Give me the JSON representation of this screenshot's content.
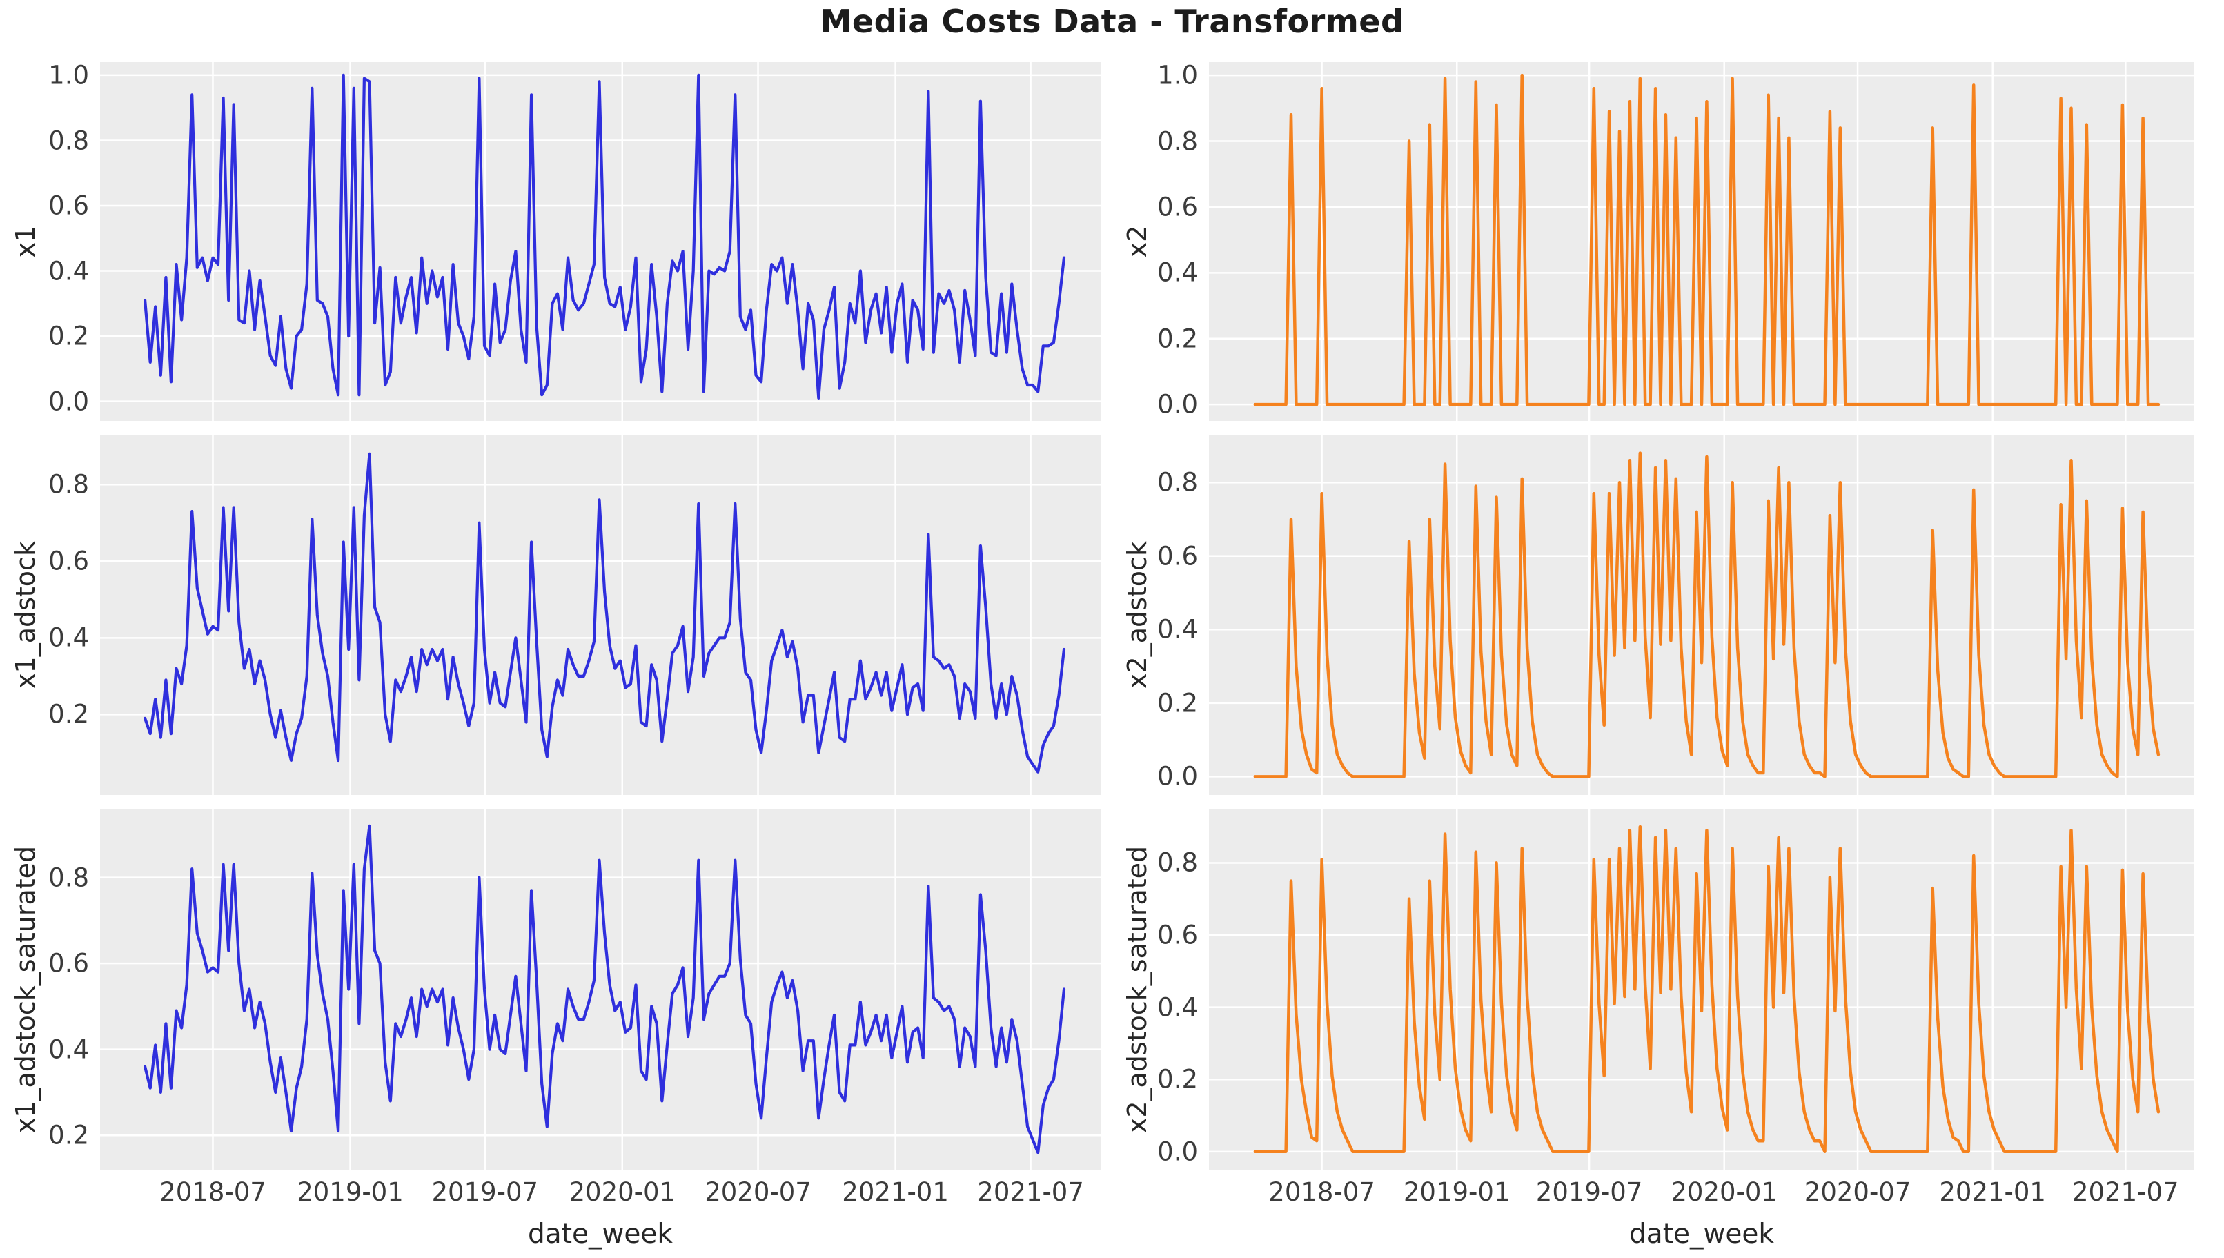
{
  "title": "Media Costs Data - Transformed",
  "colors": {
    "blue": "#2f2fdd",
    "orange": "#f5821e",
    "axes_bg": "#ececec",
    "grid": "#ffffff",
    "tick_text": "#3b3b3b",
    "label_text": "#262626",
    "title_text": "#1c1c1c",
    "figure_bg": "#ffffff"
  },
  "chart_data": {
    "type": "line",
    "title": "Media Costs Data - Transformed",
    "xlabel": "date_week",
    "grid": true,
    "legend": "none",
    "x_start_date": "2018-04-01",
    "x_step_days": 7,
    "n_points": 177,
    "x_tick_labels": [
      "2018-07",
      "2019-01",
      "2019-07",
      "2020-01",
      "2020-07",
      "2021-01",
      "2021-07"
    ],
    "x_tick_weeks": [
      13,
      39.3,
      65.1,
      91.4,
      117.4,
      143.7,
      169.6
    ],
    "subplots": [
      {
        "row": 0,
        "col": 0,
        "ylabel": "x1",
        "color": "blue",
        "yticks": [
          0.0,
          0.2,
          0.4,
          0.6,
          0.8,
          1.0
        ],
        "ylim": [
          -0.06,
          1.04
        ],
        "xlim": [
          -8.6,
          183
        ],
        "values": [
          0.31,
          0.12,
          0.29,
          0.08,
          0.38,
          0.06,
          0.42,
          0.25,
          0.44,
          0.94,
          0.41,
          0.44,
          0.37,
          0.44,
          0.42,
          0.93,
          0.31,
          0.91,
          0.25,
          0.24,
          0.4,
          0.22,
          0.37,
          0.26,
          0.14,
          0.11,
          0.26,
          0.1,
          0.04,
          0.2,
          0.22,
          0.36,
          0.96,
          0.31,
          0.3,
          0.26,
          0.1,
          0.02,
          1.0,
          0.2,
          0.96,
          0.02,
          0.99,
          0.98,
          0.24,
          0.41,
          0.05,
          0.09,
          0.38,
          0.24,
          0.32,
          0.38,
          0.21,
          0.44,
          0.3,
          0.4,
          0.32,
          0.38,
          0.16,
          0.42,
          0.24,
          0.2,
          0.13,
          0.26,
          0.99,
          0.17,
          0.14,
          0.36,
          0.18,
          0.22,
          0.37,
          0.46,
          0.22,
          0.12,
          0.94,
          0.23,
          0.02,
          0.05,
          0.3,
          0.33,
          0.22,
          0.44,
          0.31,
          0.28,
          0.3,
          0.36,
          0.42,
          0.98,
          0.38,
          0.3,
          0.29,
          0.35,
          0.22,
          0.29,
          0.44,
          0.06,
          0.16,
          0.42,
          0.26,
          0.03,
          0.3,
          0.43,
          0.4,
          0.46,
          0.16,
          0.4,
          1.0,
          0.03,
          0.4,
          0.39,
          0.41,
          0.4,
          0.46,
          0.94,
          0.26,
          0.22,
          0.28,
          0.08,
          0.06,
          0.28,
          0.42,
          0.4,
          0.44,
          0.3,
          0.42,
          0.28,
          0.1,
          0.3,
          0.25,
          0.01,
          0.22,
          0.28,
          0.35,
          0.04,
          0.12,
          0.3,
          0.24,
          0.4,
          0.18,
          0.28,
          0.33,
          0.21,
          0.35,
          0.15,
          0.3,
          0.36,
          0.12,
          0.31,
          0.28,
          0.16,
          0.95,
          0.15,
          0.33,
          0.3,
          0.34,
          0.28,
          0.12,
          0.34,
          0.25,
          0.14,
          0.92,
          0.38,
          0.15,
          0.14,
          0.33,
          0.15,
          0.36,
          0.22,
          0.1,
          0.05,
          0.05,
          0.03,
          0.17,
          0.17,
          0.18,
          0.3,
          0.44
        ]
      },
      {
        "row": 0,
        "col": 1,
        "ylabel": "x2",
        "color": "orange",
        "yticks": [
          0.0,
          0.2,
          0.4,
          0.6,
          0.8,
          1.0
        ],
        "ylim": [
          -0.05,
          1.04
        ],
        "xlim": [
          -9,
          183
        ],
        "values": [
          0,
          0,
          0,
          0,
          0,
          0,
          0,
          0.88,
          0,
          0,
          0,
          0,
          0,
          0.96,
          0,
          0,
          0,
          0,
          0,
          0,
          0,
          0,
          0,
          0,
          0,
          0,
          0,
          0,
          0,
          0,
          0.8,
          0,
          0,
          0,
          0.85,
          0,
          0,
          0.99,
          0,
          0,
          0,
          0,
          0,
          0.98,
          0,
          0,
          0,
          0.91,
          0,
          0,
          0,
          0,
          1.0,
          0,
          0,
          0,
          0,
          0,
          0,
          0,
          0,
          0,
          0,
          0,
          0,
          0,
          0.96,
          0,
          0,
          0.89,
          0,
          0.83,
          0,
          0.92,
          0,
          0.99,
          0,
          0,
          0.96,
          0,
          0.88,
          0,
          0.81,
          0,
          0,
          0,
          0.87,
          0,
          0.92,
          0,
          0,
          0,
          0,
          0.99,
          0,
          0,
          0,
          0,
          0,
          0,
          0.94,
          0,
          0.87,
          0,
          0.81,
          0,
          0,
          0,
          0,
          0,
          0,
          0,
          0.89,
          0,
          0.84,
          0,
          0,
          0,
          0,
          0,
          0,
          0,
          0,
          0,
          0,
          0,
          0,
          0,
          0,
          0,
          0,
          0,
          0.84,
          0,
          0,
          0,
          0,
          0,
          0,
          0,
          0.97,
          0,
          0,
          0,
          0,
          0,
          0,
          0,
          0,
          0,
          0,
          0,
          0,
          0,
          0,
          0,
          0,
          0.93,
          0,
          0.9,
          0,
          0,
          0.85,
          0,
          0,
          0,
          0,
          0,
          0,
          0.91,
          0,
          0,
          0,
          0.87,
          0,
          0,
          0
        ]
      },
      {
        "row": 1,
        "col": 0,
        "ylabel": "x1_adstock",
        "color": "blue",
        "yticks": [
          0.2,
          0.4,
          0.6,
          0.8
        ],
        "ylim": [
          -0.01,
          0.93
        ],
        "xlim": [
          -8.6,
          183
        ],
        "values": [
          0.19,
          0.15,
          0.24,
          0.14,
          0.29,
          0.15,
          0.32,
          0.28,
          0.38,
          0.73,
          0.53,
          0.47,
          0.41,
          0.43,
          0.42,
          0.74,
          0.47,
          0.74,
          0.44,
          0.32,
          0.37,
          0.28,
          0.34,
          0.29,
          0.2,
          0.14,
          0.21,
          0.14,
          0.08,
          0.15,
          0.19,
          0.3,
          0.71,
          0.46,
          0.36,
          0.3,
          0.18,
          0.08,
          0.65,
          0.37,
          0.74,
          0.29,
          0.72,
          0.88,
          0.48,
          0.44,
          0.2,
          0.13,
          0.29,
          0.26,
          0.3,
          0.35,
          0.26,
          0.37,
          0.33,
          0.37,
          0.34,
          0.37,
          0.24,
          0.35,
          0.28,
          0.23,
          0.17,
          0.23,
          0.7,
          0.37,
          0.23,
          0.31,
          0.23,
          0.22,
          0.31,
          0.4,
          0.29,
          0.18,
          0.65,
          0.39,
          0.16,
          0.09,
          0.22,
          0.29,
          0.25,
          0.37,
          0.33,
          0.3,
          0.3,
          0.34,
          0.39,
          0.76,
          0.52,
          0.38,
          0.32,
          0.34,
          0.27,
          0.28,
          0.38,
          0.18,
          0.17,
          0.33,
          0.29,
          0.13,
          0.24,
          0.36,
          0.38,
          0.43,
          0.26,
          0.35,
          0.75,
          0.3,
          0.36,
          0.38,
          0.4,
          0.4,
          0.44,
          0.75,
          0.45,
          0.31,
          0.29,
          0.16,
          0.1,
          0.21,
          0.34,
          0.38,
          0.42,
          0.35,
          0.39,
          0.32,
          0.18,
          0.25,
          0.25,
          0.1,
          0.17,
          0.24,
          0.31,
          0.14,
          0.13,
          0.24,
          0.24,
          0.34,
          0.24,
          0.27,
          0.31,
          0.25,
          0.31,
          0.21,
          0.27,
          0.33,
          0.2,
          0.27,
          0.28,
          0.21,
          0.67,
          0.35,
          0.34,
          0.32,
          0.33,
          0.3,
          0.19,
          0.28,
          0.26,
          0.19,
          0.64,
          0.48,
          0.28,
          0.19,
          0.28,
          0.2,
          0.3,
          0.25,
          0.16,
          0.09,
          0.07,
          0.05,
          0.12,
          0.15,
          0.17,
          0.25,
          0.37
        ]
      },
      {
        "row": 1,
        "col": 1,
        "ylabel": "x2_adstock",
        "color": "orange",
        "yticks": [
          0.0,
          0.2,
          0.4,
          0.6,
          0.8
        ],
        "ylim": [
          -0.05,
          0.93
        ],
        "xlim": [
          -9,
          183
        ],
        "values": [
          0,
          0,
          0,
          0,
          0,
          0,
          0,
          0.7,
          0.3,
          0.13,
          0.06,
          0.02,
          0.01,
          0.77,
          0.33,
          0.14,
          0.06,
          0.03,
          0.01,
          0,
          0,
          0,
          0,
          0,
          0,
          0,
          0,
          0,
          0,
          0,
          0.64,
          0.28,
          0.12,
          0.05,
          0.7,
          0.3,
          0.13,
          0.85,
          0.37,
          0.16,
          0.07,
          0.03,
          0.01,
          0.79,
          0.34,
          0.15,
          0.06,
          0.76,
          0.33,
          0.14,
          0.06,
          0.03,
          0.81,
          0.35,
          0.15,
          0.06,
          0.03,
          0.01,
          0,
          0,
          0,
          0,
          0,
          0,
          0,
          0,
          0.77,
          0.33,
          0.14,
          0.77,
          0.33,
          0.8,
          0.35,
          0.86,
          0.37,
          0.88,
          0.38,
          0.16,
          0.84,
          0.36,
          0.86,
          0.37,
          0.81,
          0.35,
          0.15,
          0.06,
          0.72,
          0.31,
          0.87,
          0.38,
          0.16,
          0.07,
          0.03,
          0.8,
          0.35,
          0.15,
          0.06,
          0.03,
          0.01,
          0.01,
          0.75,
          0.32,
          0.84,
          0.36,
          0.8,
          0.35,
          0.15,
          0.06,
          0.03,
          0.01,
          0.01,
          0,
          0.71,
          0.31,
          0.8,
          0.35,
          0.15,
          0.06,
          0.03,
          0.01,
          0,
          0,
          0,
          0,
          0,
          0,
          0,
          0,
          0,
          0,
          0,
          0,
          0.67,
          0.29,
          0.12,
          0.05,
          0.02,
          0.01,
          0,
          0,
          0.78,
          0.33,
          0.14,
          0.06,
          0.03,
          0.01,
          0,
          0,
          0,
          0,
          0,
          0,
          0,
          0,
          0,
          0,
          0,
          0.74,
          0.32,
          0.86,
          0.37,
          0.16,
          0.75,
          0.32,
          0.14,
          0.06,
          0.03,
          0.01,
          0,
          0.73,
          0.31,
          0.13,
          0.06,
          0.72,
          0.31,
          0.13,
          0.06
        ]
      },
      {
        "row": 2,
        "col": 0,
        "ylabel": "x1_adstock_saturated",
        "color": "blue",
        "yticks": [
          0.2,
          0.4,
          0.6,
          0.8
        ],
        "ylim": [
          0.12,
          0.96
        ],
        "xlim": [
          -8.6,
          183
        ],
        "values": [
          0.36,
          0.31,
          0.41,
          0.3,
          0.46,
          0.31,
          0.49,
          0.45,
          0.55,
          0.82,
          0.67,
          0.63,
          0.58,
          0.59,
          0.58,
          0.83,
          0.63,
          0.83,
          0.6,
          0.49,
          0.54,
          0.45,
          0.51,
          0.46,
          0.37,
          0.3,
          0.38,
          0.3,
          0.21,
          0.31,
          0.36,
          0.47,
          0.81,
          0.62,
          0.53,
          0.47,
          0.35,
          0.21,
          0.77,
          0.54,
          0.83,
          0.46,
          0.82,
          0.92,
          0.63,
          0.6,
          0.37,
          0.28,
          0.46,
          0.43,
          0.47,
          0.52,
          0.43,
          0.54,
          0.5,
          0.54,
          0.51,
          0.54,
          0.41,
          0.52,
          0.45,
          0.4,
          0.33,
          0.4,
          0.8,
          0.54,
          0.4,
          0.48,
          0.4,
          0.39,
          0.48,
          0.57,
          0.46,
          0.35,
          0.77,
          0.56,
          0.32,
          0.22,
          0.39,
          0.46,
          0.42,
          0.54,
          0.5,
          0.47,
          0.47,
          0.51,
          0.56,
          0.84,
          0.67,
          0.55,
          0.49,
          0.51,
          0.44,
          0.45,
          0.55,
          0.35,
          0.33,
          0.5,
          0.46,
          0.28,
          0.41,
          0.53,
          0.55,
          0.59,
          0.43,
          0.52,
          0.84,
          0.47,
          0.53,
          0.55,
          0.57,
          0.57,
          0.6,
          0.84,
          0.61,
          0.48,
          0.46,
          0.32,
          0.24,
          0.38,
          0.51,
          0.55,
          0.58,
          0.52,
          0.56,
          0.49,
          0.35,
          0.42,
          0.42,
          0.24,
          0.33,
          0.41,
          0.48,
          0.3,
          0.28,
          0.41,
          0.41,
          0.51,
          0.41,
          0.44,
          0.48,
          0.42,
          0.48,
          0.38,
          0.44,
          0.5,
          0.37,
          0.44,
          0.45,
          0.38,
          0.78,
          0.52,
          0.51,
          0.49,
          0.5,
          0.47,
          0.36,
          0.45,
          0.43,
          0.36,
          0.76,
          0.63,
          0.45,
          0.36,
          0.45,
          0.37,
          0.47,
          0.42,
          0.32,
          0.22,
          0.19,
          0.16,
          0.27,
          0.31,
          0.33,
          0.42,
          0.54
        ]
      },
      {
        "row": 2,
        "col": 1,
        "ylabel": "x2_adstock_saturated",
        "color": "orange",
        "yticks": [
          0.0,
          0.2,
          0.4,
          0.6,
          0.8
        ],
        "ylim": [
          -0.05,
          0.95
        ],
        "xlim": [
          -9,
          183
        ],
        "values": [
          0,
          0,
          0,
          0,
          0,
          0,
          0,
          0.75,
          0.38,
          0.2,
          0.11,
          0.04,
          0.03,
          0.81,
          0.41,
          0.21,
          0.11,
          0.06,
          0.03,
          0,
          0,
          0,
          0,
          0,
          0,
          0,
          0,
          0,
          0,
          0,
          0.7,
          0.36,
          0.18,
          0.09,
          0.75,
          0.38,
          0.2,
          0.88,
          0.45,
          0.23,
          0.12,
          0.06,
          0.03,
          0.83,
          0.42,
          0.22,
          0.11,
          0.8,
          0.41,
          0.21,
          0.11,
          0.06,
          0.84,
          0.43,
          0.22,
          0.11,
          0.06,
          0.03,
          0,
          0,
          0,
          0,
          0,
          0,
          0,
          0,
          0.81,
          0.41,
          0.21,
          0.81,
          0.41,
          0.84,
          0.43,
          0.89,
          0.45,
          0.9,
          0.46,
          0.23,
          0.87,
          0.44,
          0.89,
          0.45,
          0.84,
          0.43,
          0.22,
          0.11,
          0.77,
          0.39,
          0.89,
          0.46,
          0.23,
          0.12,
          0.06,
          0.84,
          0.43,
          0.22,
          0.11,
          0.06,
          0.03,
          0.03,
          0.79,
          0.4,
          0.87,
          0.44,
          0.84,
          0.43,
          0.22,
          0.11,
          0.06,
          0.03,
          0.03,
          0,
          0.76,
          0.39,
          0.84,
          0.43,
          0.22,
          0.11,
          0.06,
          0.03,
          0,
          0,
          0,
          0,
          0,
          0,
          0,
          0,
          0,
          0,
          0,
          0,
          0.73,
          0.37,
          0.18,
          0.09,
          0.04,
          0.03,
          0,
          0,
          0.82,
          0.41,
          0.21,
          0.11,
          0.06,
          0.03,
          0,
          0,
          0,
          0,
          0,
          0,
          0,
          0,
          0,
          0,
          0,
          0.79,
          0.4,
          0.89,
          0.45,
          0.23,
          0.79,
          0.4,
          0.21,
          0.11,
          0.06,
          0.03,
          0,
          0.78,
          0.39,
          0.2,
          0.11,
          0.77,
          0.39,
          0.2,
          0.11
        ]
      }
    ]
  }
}
